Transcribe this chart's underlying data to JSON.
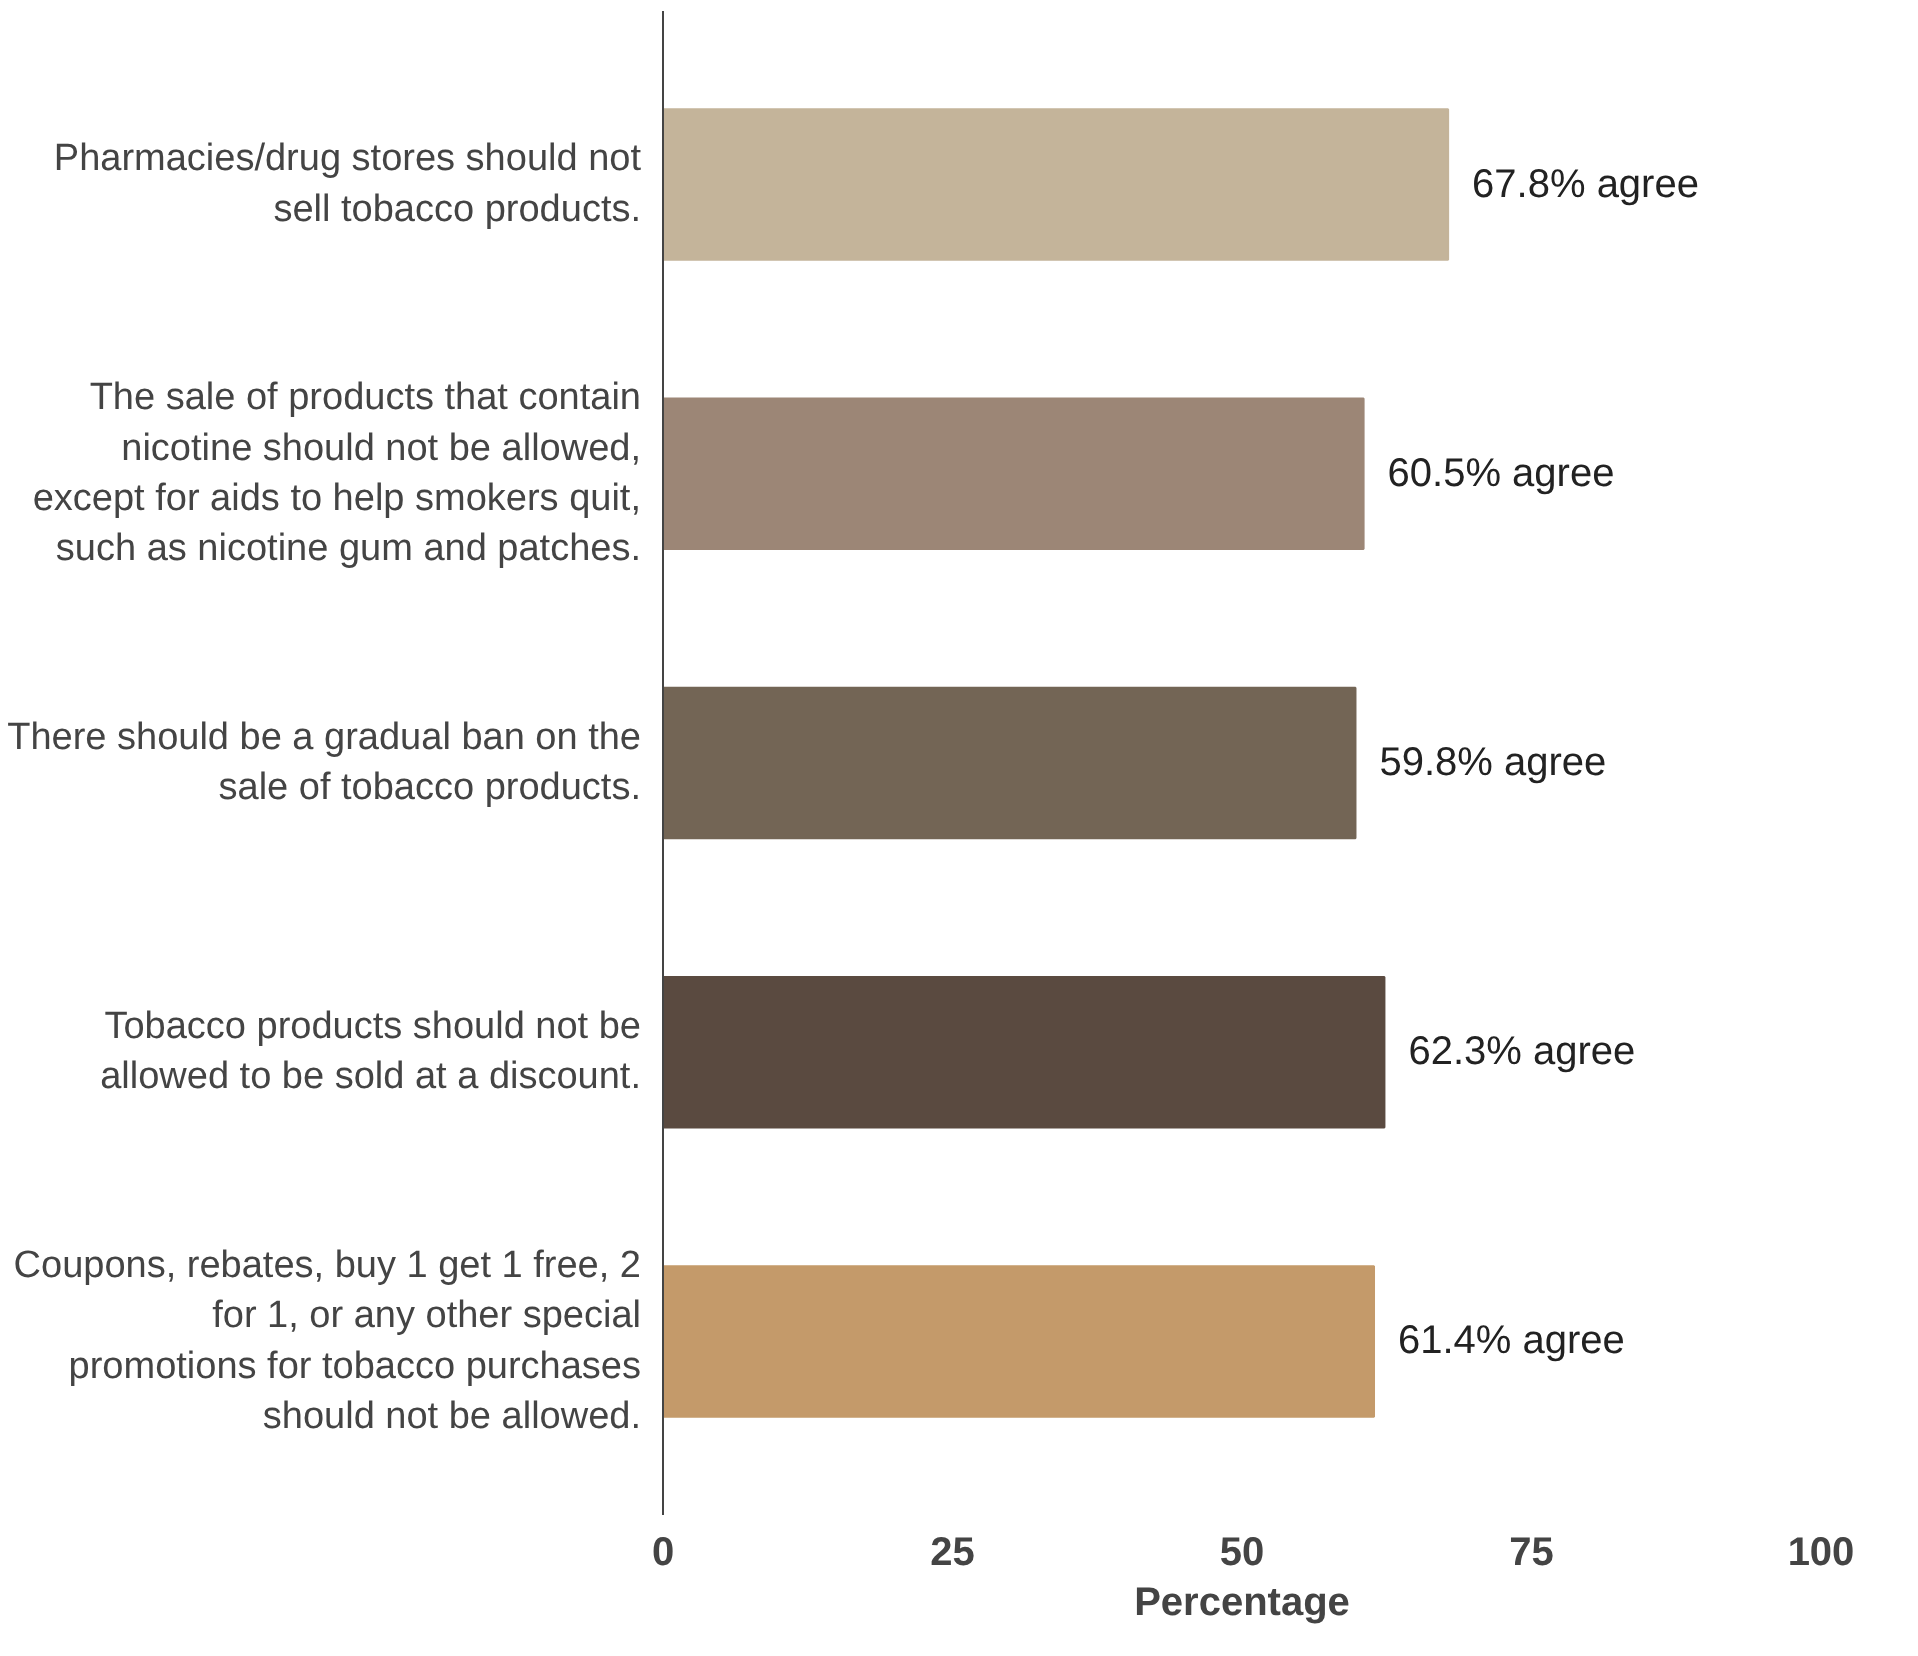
{
  "chart_data": {
    "type": "bar",
    "orientation": "horizontal",
    "xlabel": "Percentage",
    "categories": [
      "Pharmacies/drug stores should not sell tobacco products.",
      "The sale of products that contain nicotine should not be allowed, except for aids to help smokers quit, such as nicotine gum and patches.",
      "There should be a gradual ban on the sale of tobacco products.",
      "Tobacco products should not be allowed to be sold at a discount.",
      "Coupons, rebates, buy 1 get 1 free, 2 for 1, or any other special promotions for tobacco purchases should not be allowed."
    ],
    "values": [
      67.8,
      60.5,
      59.8,
      62.3,
      61.4
    ],
    "colors": [
      "#c4b49a",
      "#9c8676",
      "#736555",
      "#5a4a40",
      "#c49a6a"
    ],
    "value_labels": [
      "67.8% agree",
      "60.5% agree",
      "59.8% agree",
      "62.3% agree",
      "61.4% agree"
    ],
    "xlim": [
      0,
      100
    ],
    "xticks": [
      0,
      25,
      50,
      75,
      100
    ],
    "grid": false
  }
}
